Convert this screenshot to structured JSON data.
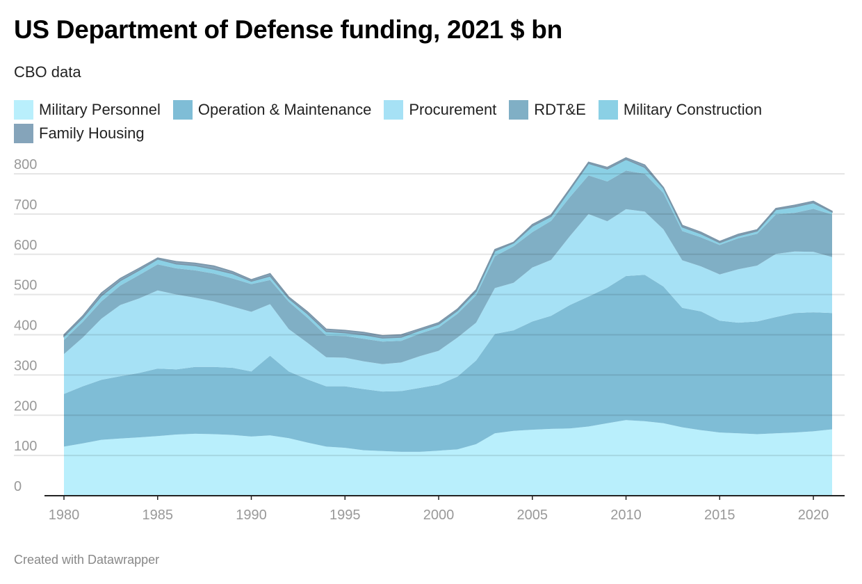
{
  "chart_data": {
    "type": "area",
    "stacked": true,
    "title": "US Department of Defense funding, 2021 $ bn",
    "subtitle": "CBO data",
    "xlabel": "",
    "ylabel": "",
    "ylim": [
      0,
      840
    ],
    "yticks": [
      0,
      100,
      200,
      300,
      400,
      500,
      600,
      700,
      800
    ],
    "xticks": [
      1980,
      1985,
      1990,
      1995,
      2000,
      2005,
      2010,
      2015,
      2020
    ],
    "grid": true,
    "legend_position": "top",
    "x": [
      1980,
      1981,
      1982,
      1983,
      1984,
      1985,
      1986,
      1987,
      1988,
      1989,
      1990,
      1991,
      1992,
      1993,
      1994,
      1995,
      1996,
      1997,
      1998,
      1999,
      2000,
      2001,
      2002,
      2003,
      2004,
      2005,
      2006,
      2007,
      2008,
      2009,
      2010,
      2011,
      2012,
      2013,
      2014,
      2015,
      2016,
      2017,
      2018,
      2019,
      2020,
      2021
    ],
    "series": [
      {
        "name": "Military Personnel",
        "color": "#b9effc",
        "values": [
          122,
          130,
          139,
          142,
          145,
          148,
          152,
          154,
          153,
          151,
          147,
          150,
          143,
          132,
          122,
          119,
          113,
          111,
          109,
          109,
          112,
          115,
          128,
          155,
          161,
          164,
          166,
          167,
          172,
          180,
          188,
          185,
          180,
          170,
          163,
          157,
          155,
          153,
          155,
          157,
          160,
          165
        ]
      },
      {
        "name": "Operation & Maintenance",
        "color": "#7fbdd6",
        "values": [
          131,
          142,
          149,
          155,
          160,
          168,
          162,
          166,
          167,
          167,
          162,
          198,
          166,
          157,
          150,
          153,
          152,
          148,
          151,
          159,
          164,
          181,
          208,
          247,
          250,
          269,
          281,
          307,
          323,
          337,
          358,
          364,
          340,
          297,
          295,
          278,
          275,
          280,
          289,
          297,
          296,
          289
        ]
      },
      {
        "name": "Procurement",
        "color": "#a6e1f5",
        "values": [
          99,
          121,
          152,
          177,
          185,
          194,
          186,
          172,
          163,
          152,
          148,
          128,
          105,
          91,
          72,
          71,
          69,
          68,
          71,
          79,
          84,
          97,
          94,
          114,
          118,
          134,
          139,
          171,
          205,
          165,
          166,
          157,
          142,
          118,
          112,
          115,
          133,
          139,
          157,
          153,
          150,
          139
        ]
      },
      {
        "name": "RDT&E",
        "color": "#80afc5",
        "values": [
          35,
          39,
          43,
          48,
          58,
          65,
          65,
          68,
          69,
          70,
          69,
          60,
          68,
          62,
          54,
          54,
          56,
          56,
          54,
          56,
          58,
          59,
          68,
          79,
          91,
          88,
          97,
          97,
          96,
          99,
          96,
          94,
          90,
          73,
          72,
          73,
          77,
          79,
          98,
          96,
          107,
          106
        ]
      },
      {
        "name": "Military Construction",
        "color": "#8bd0e5",
        "values": [
          9,
          10,
          14,
          12,
          12,
          13,
          11,
          12,
          11,
          12,
          7,
          10,
          8,
          10,
          10,
          8,
          10,
          9,
          9,
          8,
          8,
          8,
          10,
          13,
          8,
          15,
          11,
          18,
          30,
          31,
          28,
          16,
          12,
          10,
          9,
          6,
          6,
          7,
          12,
          15,
          15,
          6
        ]
      },
      {
        "name": "Family Housing",
        "color": "#85a4ba",
        "values": [
          4,
          5,
          7,
          6,
          5,
          3,
          6,
          6,
          8,
          5,
          4,
          6,
          4,
          5,
          6,
          6,
          6,
          6,
          6,
          4,
          4,
          4,
          4,
          4,
          2,
          4,
          4,
          3,
          3,
          4,
          4,
          6,
          2,
          4,
          4,
          3,
          4,
          3,
          3,
          4,
          4,
          2
        ]
      }
    ],
    "footer": "Created with Datawrapper"
  }
}
